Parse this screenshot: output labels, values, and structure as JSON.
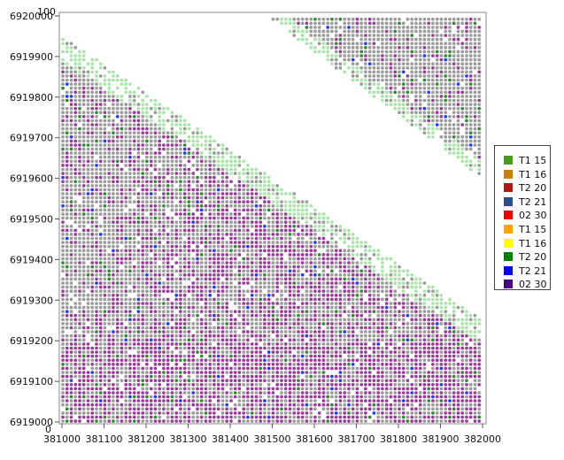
{
  "chart_data": {
    "type": "scatter",
    "title": "",
    "xlabel": "",
    "ylabel": "",
    "xlim": [
      381000,
      382000
    ],
    "ylim": [
      6919000,
      6920000
    ],
    "grid": false,
    "legend_placement": "right",
    "x_ticks": [
      "381000",
      "381100",
      "381200",
      "381300",
      "381400",
      "381500",
      "381600",
      "381700",
      "381800",
      "381900",
      "382000"
    ],
    "y_ticks": [
      "6919000",
      "6919100",
      "6919200",
      "6919300",
      "6919400",
      "6919500",
      "6919600",
      "6919700",
      "6919800",
      "6919900",
      "6920000"
    ],
    "corner_labels": {
      "top": "100",
      "bottom": "0"
    },
    "grid_spacing": 10,
    "legend": [
      {
        "label": "T1 15",
        "color": "#4a9a1e"
      },
      {
        "label": "T1 16",
        "color": "#c8820a"
      },
      {
        "label": "T2 20",
        "color": "#b01818"
      },
      {
        "label": "T2 21",
        "color": "#2a4e8a"
      },
      {
        "label": "02 30",
        "color": "#f00000"
      },
      {
        "label": "T1 15",
        "color": "#ffa500"
      },
      {
        "label": "T1 16",
        "color": "#ffff00"
      },
      {
        "label": "T2 20",
        "color": "#008000"
      },
      {
        "label": "T2 21",
        "color": "#0000ff"
      },
      {
        "label": "02 30",
        "color": "#4b0082"
      }
    ],
    "point_colors": {
      "gray": "#9a9a9a",
      "purple": "#9b3a9b",
      "light_green": "#a8e6a8",
      "green": "#2e8b2e",
      "blue": "#1e3cff"
    }
  }
}
